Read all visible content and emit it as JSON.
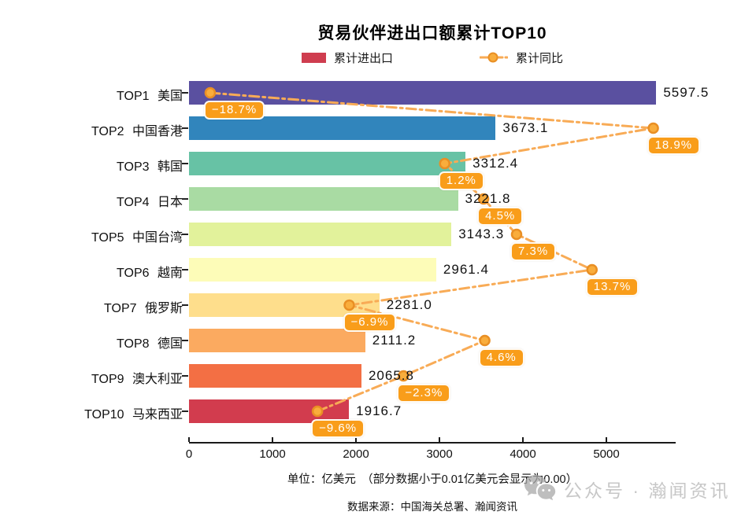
{
  "title": "贸易伙伴进出口额累计TOP10",
  "legend": {
    "bar_label": "累计进出口",
    "line_label": "累计同比"
  },
  "chart_data": {
    "type": "bar",
    "orientation": "horizontal",
    "title": "贸易伙伴进出口额累计TOP10",
    "categories": [
      "TOP1 美国",
      "TOP2 中国香港",
      "TOP3 韩国",
      "TOP4 日本",
      "TOP5 中国台湾",
      "TOP6 越南",
      "TOP7 俄罗斯",
      "TOP8 德国",
      "TOP9 澳大利亚",
      "TOP10 马来西亚"
    ],
    "series": [
      {
        "name": "累计进出口",
        "values": [
          5597.5,
          3673.1,
          3312.4,
          3221.8,
          3143.3,
          2961.4,
          2281.0,
          2111.2,
          2065.8,
          1916.7
        ],
        "labels": [
          "5597.5",
          "3673.1",
          "3312.4",
          "3221.8",
          "3143.3",
          "2961.4",
          "2281.0",
          "2111.2",
          "2065.8",
          "1916.7"
        ]
      },
      {
        "name": "累计同比",
        "values": [
          -18.7,
          18.9,
          1.2,
          4.5,
          7.3,
          13.7,
          -6.9,
          4.6,
          -2.3,
          -9.6
        ],
        "labels": [
          "−18.7%",
          "18.9%",
          "1.2%",
          "4.5%",
          "7.3%",
          "13.7%",
          "−6.9%",
          "4.6%",
          "−2.3%",
          "−9.6%"
        ]
      }
    ],
    "bar_colors": [
      "#5a50a0",
      "#3185bc",
      "#67c2a5",
      "#a9dba3",
      "#e2f29b",
      "#fdfcb8",
      "#fede8c",
      "#fbaa60",
      "#f36f44",
      "#d23c4e"
    ],
    "x_ticks": [
      "0",
      "1000",
      "2000",
      "3000",
      "4000",
      "5000"
    ],
    "x_tick_values": [
      0,
      1000,
      2000,
      3000,
      4000,
      5000
    ],
    "xlim": [
      0,
      5830
    ],
    "yoy_lim": [
      -20.5,
      20.8
    ],
    "legend_position": "top",
    "grid": false,
    "line_color": "#f8ab56",
    "marker_fill": "#f9ad3c",
    "marker_stroke": "#e98f24",
    "pct_label_bg": "#f99d1a",
    "legend_bar_color": "#cf3d4f"
  },
  "footer": {
    "unit_note": "单位：亿美元　（部分数据小于0.01亿美元会显示为0.00）",
    "source_note": "数据来源：中国海关总署、瀚闻资讯"
  },
  "watermark": {
    "text": "公众号 · 瀚闻资讯",
    "icon": "chat-bubbles-icon"
  }
}
